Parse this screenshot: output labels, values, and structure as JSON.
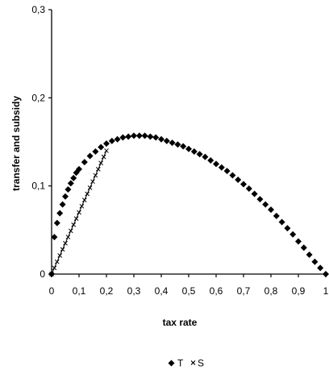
{
  "chart_data": {
    "type": "scatter",
    "xlabel": "tax rate",
    "ylabel": "transfer and subsidy",
    "xlim": [
      0,
      1
    ],
    "ylim": [
      0,
      0.3
    ],
    "x_ticks": [
      "0",
      "0,1",
      "0,2",
      "0,3",
      "0,4",
      "0,5",
      "0,6",
      "0,7",
      "0,8",
      "0,9",
      "1"
    ],
    "y_ticks": [
      "0",
      "0,1",
      "0,2",
      "0,3"
    ],
    "grid": false,
    "legend_position": "bottom",
    "series": [
      {
        "name": "T",
        "marker": "diamond",
        "color": "#000000",
        "x": [
          0,
          0.01,
          0.02,
          0.03,
          0.04,
          0.05,
          0.06,
          0.07,
          0.08,
          0.09,
          0.1,
          0.12,
          0.14,
          0.16,
          0.18,
          0.2,
          0.22,
          0.24,
          0.26,
          0.28,
          0.3,
          0.32,
          0.34,
          0.36,
          0.38,
          0.4,
          0.42,
          0.44,
          0.46,
          0.48,
          0.5,
          0.52,
          0.54,
          0.56,
          0.58,
          0.6,
          0.62,
          0.64,
          0.66,
          0.68,
          0.7,
          0.72,
          0.74,
          0.76,
          0.78,
          0.8,
          0.82,
          0.84,
          0.86,
          0.88,
          0.9,
          0.92,
          0.94,
          0.96,
          0.98,
          1.0
        ],
        "y": [
          0,
          0.042,
          0.058,
          0.069,
          0.079,
          0.088,
          0.096,
          0.103,
          0.109,
          0.115,
          0.119,
          0.127,
          0.134,
          0.139,
          0.144,
          0.148,
          0.151,
          0.153,
          0.155,
          0.156,
          0.157,
          0.157,
          0.157,
          0.156,
          0.155,
          0.153,
          0.151,
          0.149,
          0.147,
          0.145,
          0.142,
          0.139,
          0.136,
          0.133,
          0.129,
          0.125,
          0.121,
          0.117,
          0.112,
          0.107,
          0.102,
          0.097,
          0.091,
          0.085,
          0.079,
          0.073,
          0.066,
          0.059,
          0.052,
          0.045,
          0.037,
          0.03,
          0.022,
          0.014,
          0.007,
          0.0
        ]
      },
      {
        "name": "S",
        "marker": "x",
        "color": "#000000",
        "x": [
          0,
          0.01,
          0.02,
          0.03,
          0.04,
          0.05,
          0.06,
          0.07,
          0.08,
          0.09,
          0.1,
          0.11,
          0.12,
          0.13,
          0.14,
          0.15,
          0.16,
          0.17,
          0.18,
          0.19,
          0.2
        ],
        "y": [
          0,
          0.007,
          0.014,
          0.021,
          0.028,
          0.035,
          0.042,
          0.049,
          0.056,
          0.063,
          0.07,
          0.077,
          0.084,
          0.091,
          0.098,
          0.105,
          0.112,
          0.119,
          0.126,
          0.133,
          0.14
        ]
      }
    ]
  }
}
